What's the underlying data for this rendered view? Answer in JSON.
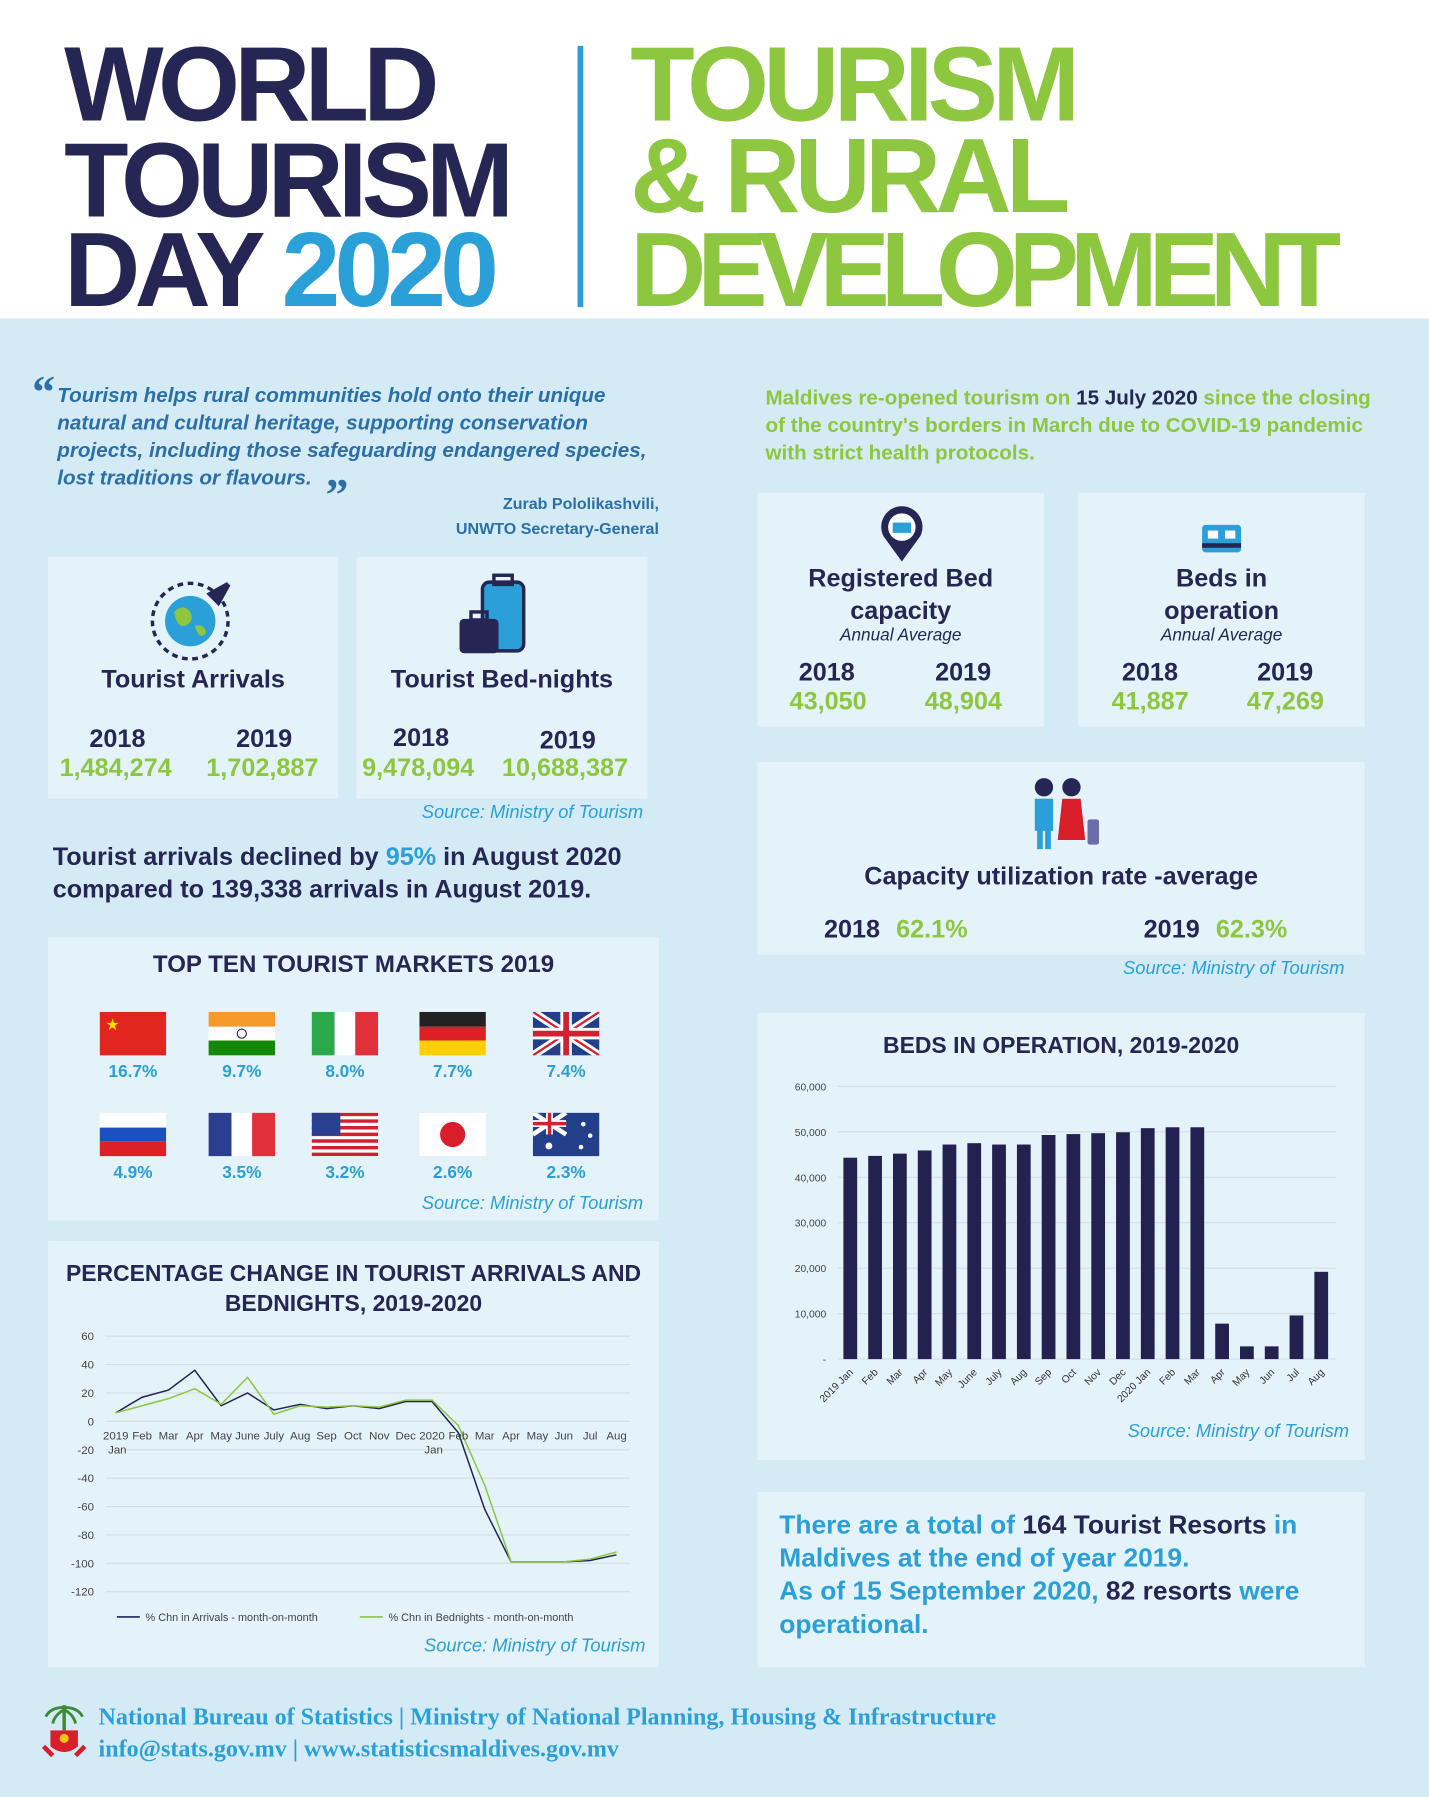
{
  "header": {
    "title_lines": [
      "WORLD",
      "TOURISM",
      "DAY"
    ],
    "year": "2020",
    "theme_lines": [
      "TOURISM",
      "& RURAL",
      "DEVELOPMENT"
    ]
  },
  "quote": {
    "text": "Tourism helps rural communities hold onto their unique natural and cultural heritage, supporting conservation projects, including those safeguarding endangered species, lost traditions or flavours.",
    "author": "Zurab Pololikashvili,",
    "role": "UNWTO Secretary-General"
  },
  "reopening": [
    "Maldives re-opened tourism on ",
    "15 July 2020",
    " since the closing of the country's borders in March due to COVID-19 pandemic with strict health protocols."
  ],
  "stats": [
    {
      "title": "Tourist Arrivals",
      "years": [
        "2018",
        "2019"
      ],
      "values": [
        "1,484,274",
        "1,702,887"
      ]
    },
    {
      "title": "Tourist Bed-nights",
      "years": [
        "2018",
        "2019"
      ],
      "values": [
        "9,478,094",
        "10,688,387"
      ]
    }
  ],
  "stats_source": "Source: Ministry of Tourism",
  "capacity": [
    {
      "title": "Registered Bed capacity",
      "subtitle": "Annual Average",
      "years": [
        "2018",
        "2019"
      ],
      "values": [
        "43,050",
        "48,904"
      ]
    },
    {
      "title": "Beds in operation",
      "subtitle": "Annual Average",
      "years": [
        "2018",
        "2019"
      ],
      "values": [
        "41,887",
        "47,269"
      ]
    }
  ],
  "utilization": {
    "title": "Capacity utilization rate -average",
    "years": [
      "2018",
      "2019"
    ],
    "values": [
      "62.1%",
      "62.3%"
    ],
    "source": "Source: Ministry of Tourism"
  },
  "arrivals_note": [
    "Tourist arrivals declined by ",
    "95%",
    " in August 2020 compared to 139,338 arrivals in August 2019."
  ],
  "markets": {
    "title": "TOP TEN TOURIST MARKETS 2019",
    "shares": [
      "16.7%",
      "9.7%",
      "8.0%",
      "7.7%",
      "7.4%",
      "4.9%",
      "3.5%",
      "3.2%",
      "2.6%",
      "2.3%"
    ],
    "source": "Source: Ministry of Tourism"
  },
  "resorts": [
    [
      "There are a total of ",
      "164 Tourist Resorts",
      " in Maldives at the end of year 2019."
    ],
    [
      "As of 15 September 2020, ",
      "82 resorts",
      " were operational."
    ]
  ],
  "footer": {
    "line1": "National Bureau of Statistics | Ministry of National Planning, Housing & Infrastructure",
    "line2": "info@stats.gov.mv | www.statisticsmaldives.gov.mv"
  },
  "chart_data": [
    {
      "type": "line",
      "title": "PERCENTAGE CHANGE IN TOURIST ARRIVALS AND BEDNIGHTS, 2019-2020",
      "categories": [
        "2019 Jan",
        "Feb",
        "Mar",
        "Apr",
        "May",
        "June",
        "July",
        "Aug",
        "Sep",
        "Oct",
        "Nov",
        "Dec",
        "2020 Jan",
        "Feb",
        "Mar",
        "Apr",
        "May",
        "Jun",
        "Jul",
        "Aug"
      ],
      "series": [
        {
          "name": "% Chn in Arrivals - month-on-month",
          "color": "#1f2454",
          "values": [
            6,
            17,
            22,
            36,
            11,
            20,
            8,
            12,
            9,
            11,
            9,
            14,
            14,
            -8,
            -62,
            -99,
            -99,
            -99,
            -98,
            -94
          ]
        },
        {
          "name": "% Chn in Bednights - month-on-month",
          "color": "#8dc63f",
          "values": [
            6,
            11,
            16,
            23,
            12,
            31,
            5,
            11,
            10,
            11,
            10,
            15,
            15,
            -3,
            -45,
            -99,
            -99,
            -99,
            -97,
            -92
          ]
        }
      ],
      "ylim": [
        -120,
        60
      ],
      "yticks": [
        -120,
        -100,
        -80,
        -60,
        -40,
        -20,
        0,
        20,
        40,
        60
      ],
      "grid": true,
      "legend": "bottom",
      "source": "Source: Ministry of Tourism"
    },
    {
      "type": "bar",
      "title": "BEDS IN OPERATION, 2019-2020",
      "categories": [
        "2019 Jan",
        "Feb",
        "Mar",
        "Apr",
        "May",
        "June",
        "July",
        "Aug",
        "Sep",
        "Oct",
        "Nov",
        "Dec",
        "2020 Jan",
        "Feb",
        "Mar",
        "Apr",
        "May",
        "Jun",
        "Jul",
        "Aug"
      ],
      "values": [
        44300,
        44700,
        45200,
        45900,
        47200,
        47500,
        47200,
        47200,
        49300,
        49500,
        49700,
        49900,
        50800,
        51000,
        51000,
        7800,
        2800,
        2800,
        9600,
        19200
      ],
      "color": "#22214f",
      "ylim": [
        0,
        60000
      ],
      "yticks": [
        {
          "value": 0,
          "label": "-"
        },
        {
          "value": 10000,
          "label": "10,000"
        },
        {
          "value": 20000,
          "label": "20,000"
        },
        {
          "value": 30000,
          "label": "30,000"
        },
        {
          "value": 40000,
          "label": "40,000"
        },
        {
          "value": 50000,
          "label": "50,000"
        },
        {
          "value": 60000,
          "label": "60,000"
        }
      ],
      "grid": true,
      "source": "Source: Ministry of Tourism"
    }
  ]
}
